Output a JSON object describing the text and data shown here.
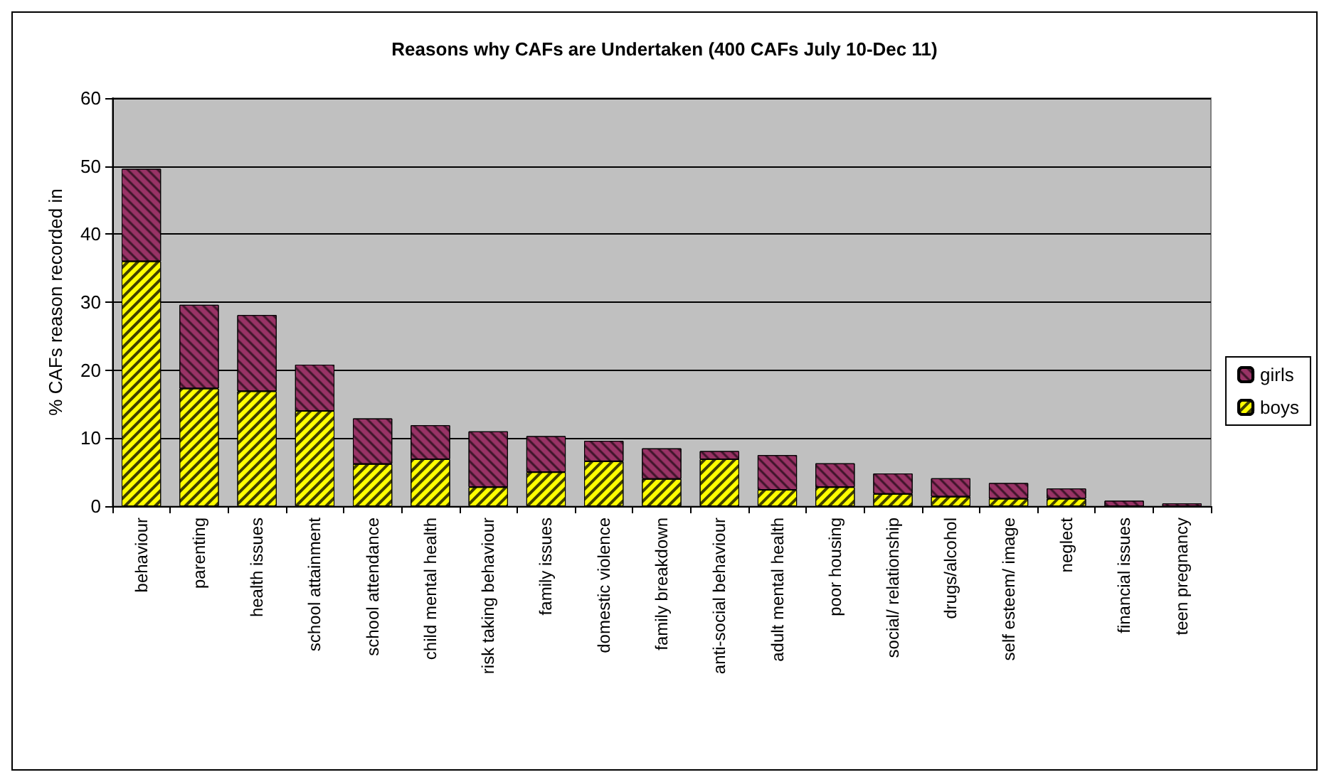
{
  "chart_data": {
    "type": "bar",
    "title": "Reasons why CAFs are Undertaken (400 CAFs July 10-Dec 11)",
    "ylabel": "% CAFs reason recorded in",
    "categories": [
      "behaviour",
      "parenting",
      "health issues",
      "school attainment",
      "school attendance",
      "child mental health",
      "risk taking behaviour",
      "family issues",
      "domestic violence",
      "family breakdown",
      "anti-social behaviour",
      "adult mental health",
      "poor housing",
      "social/ relationship",
      "drugs/alcohol",
      "self esteem/ image",
      "neglect",
      "financial issues",
      "teen pregnancy"
    ],
    "stacked": true,
    "series": [
      {
        "name": "boys",
        "color": "#ffff00",
        "values": [
          36.0,
          17.3,
          16.9,
          14.0,
          6.2,
          6.9,
          2.8,
          5.0,
          6.6,
          4.0,
          6.9,
          2.4,
          2.8,
          1.8,
          1.4,
          1.1,
          1.1,
          0,
          0
        ]
      },
      {
        "name": "girls",
        "color": "#993366",
        "values": [
          13.6,
          12.3,
          11.2,
          6.8,
          6.7,
          5.0,
          8.2,
          5.3,
          3.0,
          4.5,
          1.2,
          5.1,
          3.5,
          3.0,
          2.7,
          2.3,
          1.5,
          0.8,
          0.4
        ]
      }
    ],
    "ylim": [
      0,
      60
    ],
    "yticks": [
      0,
      10,
      20,
      30,
      40,
      50,
      60
    ],
    "grid": "y",
    "legend": "right"
  }
}
